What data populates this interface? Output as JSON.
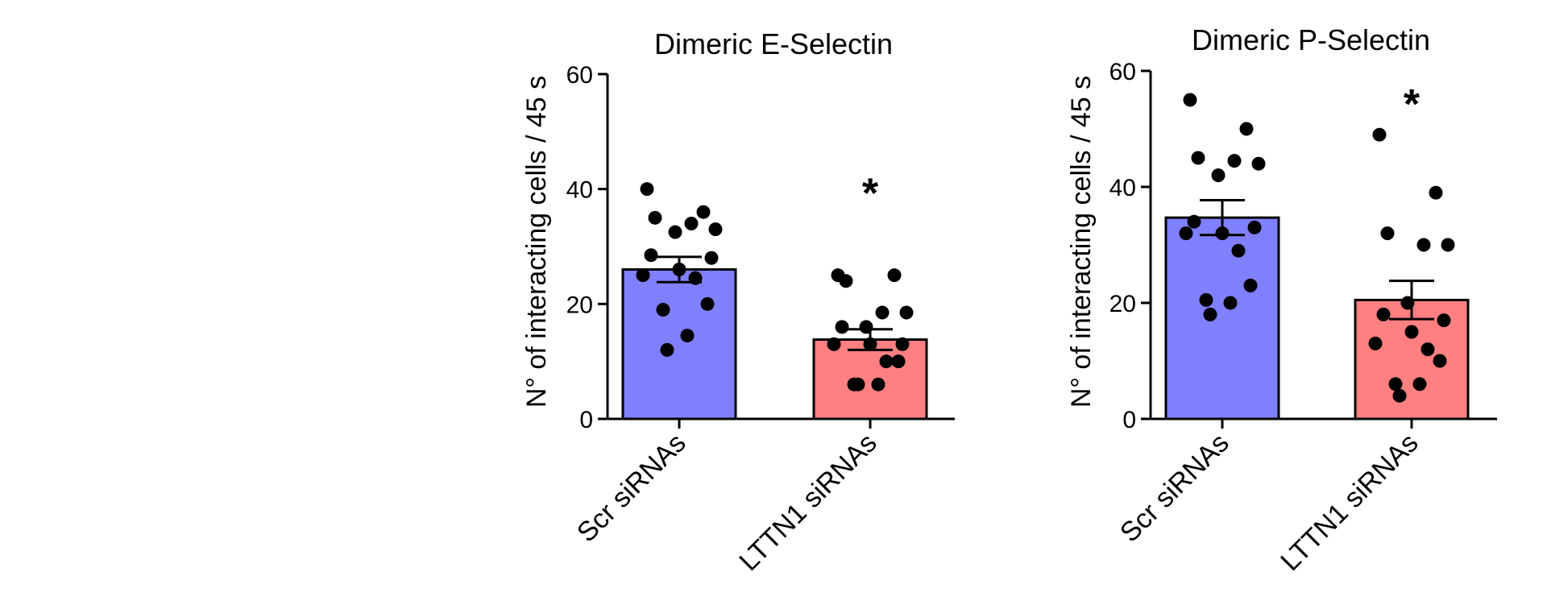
{
  "chart_data": [
    {
      "type": "bar",
      "title": "Dimeric E-Selectin",
      "ylabel": "N° of interacting cells / 45 s",
      "xlabel": "",
      "ylim": [
        0,
        60
      ],
      "yticks": [
        0,
        20,
        40,
        60
      ],
      "categories": [
        "Scr siRNAs",
        "LTTN1 siRNAs"
      ],
      "colors": [
        "#8080ff",
        "#ff8080"
      ],
      "values": [
        26,
        13.8
      ],
      "sem": [
        2.2,
        1.8
      ],
      "points": [
        [
          40,
          36,
          35,
          34,
          33,
          32.5,
          28.5,
          28,
          26,
          25,
          24.5,
          20,
          19,
          14.5,
          12
        ],
        [
          25,
          25,
          24,
          18.5,
          18.5,
          16,
          16,
          13,
          13,
          13,
          10,
          10,
          6,
          6,
          6
        ]
      ],
      "annotations": [
        {
          "category": "LTTN1 siRNAs",
          "text": "*",
          "y": 41
        }
      ],
      "grid": false
    },
    {
      "type": "bar",
      "title": "Dimeric P-Selectin",
      "ylabel": "N° of interacting cells / 45 s",
      "xlabel": "",
      "ylim": [
        0,
        60
      ],
      "yticks": [
        0,
        20,
        40,
        60
      ],
      "categories": [
        "Scr siRNAs",
        "LTTN1 siRNAs"
      ],
      "colors": [
        "#8080ff",
        "#ff8080"
      ],
      "values": [
        34.7,
        20.5
      ],
      "sem": [
        3.0,
        3.3
      ],
      "points": [
        [
          55,
          50,
          45,
          44.5,
          44,
          42,
          34,
          33,
          32,
          32,
          29,
          23,
          20.5,
          20,
          18
        ],
        [
          49,
          39,
          32,
          30,
          30,
          20,
          18,
          17,
          15,
          13,
          12,
          10,
          6,
          6,
          4
        ]
      ],
      "annotations": [
        {
          "category": "LTTN1 siRNAs",
          "text": "*",
          "y": 56
        }
      ],
      "grid": false
    }
  ]
}
